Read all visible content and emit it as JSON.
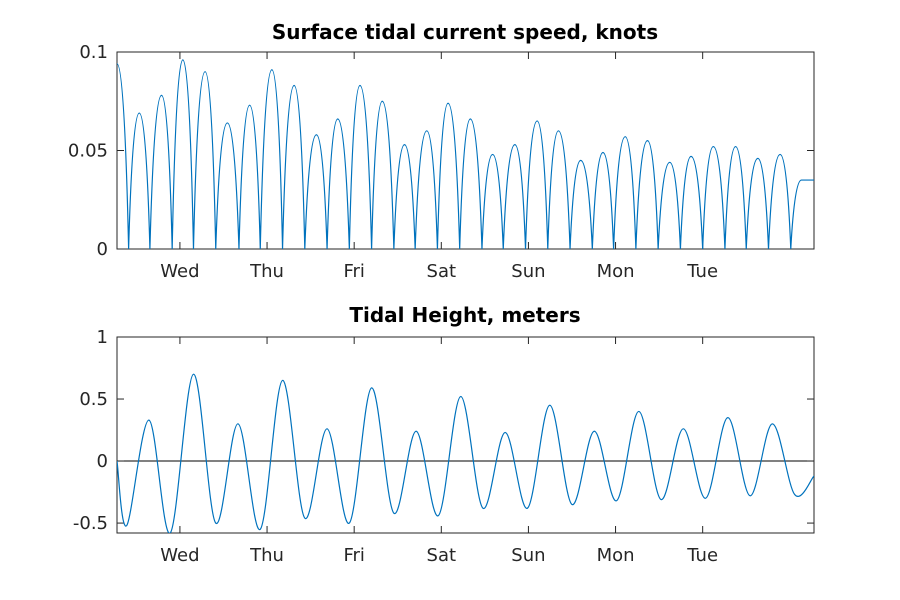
{
  "chart_data": [
    {
      "type": "line",
      "title": "Surface tidal current speed, knots",
      "xlabel": "",
      "ylabel": "",
      "x_unit": "days",
      "xlim": [
        0,
        7.2
      ],
      "ylim": [
        0,
        0.1
      ],
      "yticks": [
        0,
        0.05,
        0.1
      ],
      "ytick_labels": [
        "0",
        "0.05",
        "0.1"
      ],
      "xticks": [
        0.65,
        1.55,
        2.45,
        3.35,
        4.25,
        5.15,
        6.05
      ],
      "xtick_labels": [
        "Wed",
        "Thu",
        "Fri",
        "Sat",
        "Sun",
        "Mon",
        "Tue"
      ],
      "grid": false,
      "color": "#0072bd",
      "series": [
        {
          "x": [
            0,
            0.12,
            0.23,
            0.34,
            0.46,
            0.57,
            0.68,
            0.79,
            0.91,
            1.02,
            1.14,
            1.26,
            1.37,
            1.48,
            1.6,
            1.71,
            1.83,
            1.94,
            2.06,
            2.17,
            2.28,
            2.4,
            2.51,
            2.63,
            2.74,
            2.86,
            2.97,
            3.08,
            3.2,
            3.31,
            3.42,
            3.54,
            3.65,
            3.77,
            3.88,
            3.99,
            4.11,
            4.22,
            4.34,
            4.45,
            4.56,
            4.68,
            4.79,
            4.91,
            5.02,
            5.13,
            5.25,
            5.36,
            5.48,
            5.59,
            5.71,
            5.82,
            5.93,
            6.05,
            6.16,
            6.28,
            6.39,
            6.5,
            6.62,
            6.73,
            6.85,
            6.96,
            7.07,
            7.2
          ],
          "values": [
            0.094,
            0,
            0.069,
            0,
            0.078,
            0,
            0.096,
            0,
            0.09,
            0,
            0.064,
            0,
            0.073,
            0,
            0.091,
            0,
            0.083,
            0,
            0.058,
            0,
            0.066,
            0,
            0.083,
            0,
            0.075,
            0,
            0.053,
            0,
            0.06,
            0,
            0.074,
            0,
            0.066,
            0,
            0.048,
            0,
            0.053,
            0,
            0.065,
            0,
            0.06,
            0,
            0.045,
            0,
            0.049,
            0,
            0.057,
            0,
            0.055,
            0,
            0.044,
            0,
            0.047,
            0,
            0.052,
            0,
            0.052,
            0,
            0.046,
            0,
            0.048,
            0,
            0.035,
            0.035
          ]
        }
      ]
    },
    {
      "type": "line",
      "title": "Tidal Height, meters",
      "xlabel": "",
      "ylabel": "",
      "x_unit": "days",
      "xlim": [
        0,
        7.2
      ],
      "ylim": [
        -0.58,
        1
      ],
      "yticks": [
        -0.5,
        0,
        0.5,
        1
      ],
      "ytick_labels": [
        "-0.5",
        "0",
        "0.5",
        "1"
      ],
      "xticks": [
        0.65,
        1.55,
        2.45,
        3.35,
        4.25,
        5.15,
        6.05
      ],
      "xtick_labels": [
        "Wed",
        "Thu",
        "Fri",
        "Sat",
        "Sun",
        "Mon",
        "Tue"
      ],
      "grid": false,
      "reference_line_y": 0,
      "color": "#0072bd",
      "series": [
        {
          "x": [
            0,
            0.1,
            0.33,
            0.55,
            0.79,
            1.02,
            1.25,
            1.48,
            1.71,
            1.94,
            2.17,
            2.4,
            2.63,
            2.86,
            3.09,
            3.32,
            3.55,
            3.78,
            4.01,
            4.24,
            4.47,
            4.7,
            4.93,
            5.16,
            5.39,
            5.62,
            5.85,
            6.08,
            6.31,
            6.54,
            6.77,
            7.0,
            7.2
          ],
          "values": [
            0,
            -0.52,
            0.33,
            -0.58,
            0.7,
            -0.5,
            0.3,
            -0.55,
            0.65,
            -0.46,
            0.26,
            -0.5,
            0.59,
            -0.42,
            0.24,
            -0.44,
            0.52,
            -0.38,
            0.23,
            -0.38,
            0.45,
            -0.35,
            0.24,
            -0.32,
            0.4,
            -0.31,
            0.26,
            -0.3,
            0.35,
            -0.28,
            0.3,
            -0.27,
            -0.12
          ]
        }
      ]
    }
  ]
}
